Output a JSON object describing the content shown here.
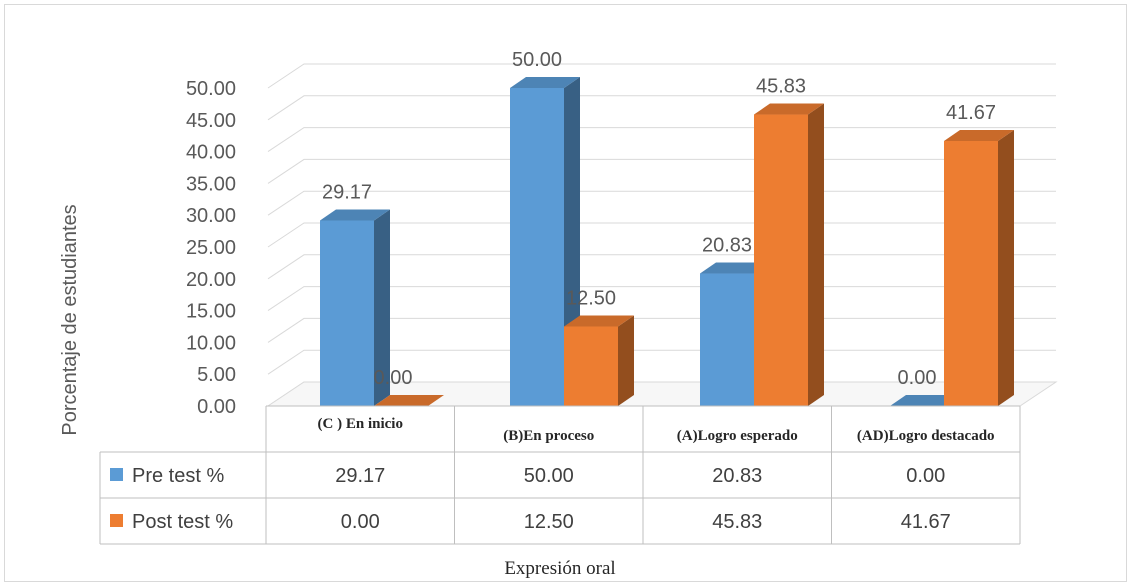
{
  "chart_data": {
    "type": "bar",
    "style": "3d-clustered-column-with-data-table",
    "categories": [
      "(C ) En inicio",
      "(B)En proceso",
      "(A)Logro esperado",
      "(AD)Logro destacado"
    ],
    "series": [
      {
        "name": "Pre test %",
        "values": [
          29.17,
          50.0,
          20.83,
          0.0
        ],
        "color": "#5b9bd5",
        "labels": [
          "29.17",
          "50.00",
          "20.83",
          "0.00"
        ]
      },
      {
        "name": "Post test %",
        "values": [
          0.0,
          12.5,
          45.83,
          41.67
        ],
        "color": "#ed7d31",
        "labels": [
          "0.00",
          "12.50",
          "45.83",
          "41.67"
        ]
      }
    ],
    "ylabel": "Porcentaje de estudiantes",
    "xlabel": "Expresión oral",
    "ylim": [
      0,
      50
    ],
    "yticks": [
      "0.00",
      "5.00",
      "10.00",
      "15.00",
      "20.00",
      "25.00",
      "30.00",
      "35.00",
      "40.00",
      "45.00",
      "50.00"
    ],
    "grid": true,
    "legend": "data-table"
  }
}
